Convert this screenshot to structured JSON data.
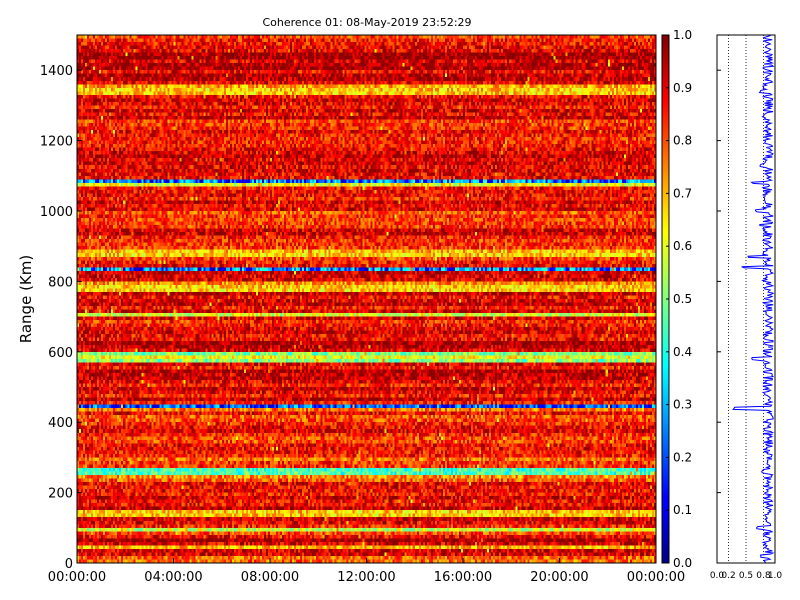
{
  "chart_data": [
    {
      "type": "heatmap",
      "title": "Coherence 01: 08-May-2019 23:52:29",
      "xlabel": "",
      "ylabel": "Range (Km)",
      "x_ticks": [
        "00:00:00",
        "04:00:00",
        "08:00:00",
        "12:00:00",
        "16:00:00",
        "20:00:00",
        "00:00:00"
      ],
      "x_range_hours": [
        0,
        24
      ],
      "y_ticks": [
        0,
        200,
        400,
        600,
        800,
        1000,
        1200,
        1400
      ],
      "y_range": [
        0,
        1500
      ],
      "colormap": "jet",
      "color_range": [
        0,
        1
      ],
      "colorbar_ticks": [
        "0.0",
        "0.1",
        "0.2",
        "0.3",
        "0.4",
        "0.5",
        "0.6",
        "0.7",
        "0.8",
        "0.9",
        "1.0"
      ],
      "n_time_bins": 288,
      "n_range_bins": 150,
      "range_band_mean_coherence": [
        {
          "range": [
            0,
            20
          ],
          "value": 0.75
        },
        {
          "range": [
            20,
            40
          ],
          "value": 0.9
        },
        {
          "range": [
            40,
            55
          ],
          "value": 0.72
        },
        {
          "range": [
            55,
            75
          ],
          "value": 0.92
        },
        {
          "range": [
            75,
            95
          ],
          "value": 0.86
        },
        {
          "range": [
            95,
            105
          ],
          "value": 0.55
        },
        {
          "range": [
            105,
            135
          ],
          "value": 0.88
        },
        {
          "range": [
            135,
            150
          ],
          "value": 0.7
        },
        {
          "range": [
            150,
            230
          ],
          "value": 0.88
        },
        {
          "range": [
            230,
            255
          ],
          "value": 0.76
        },
        {
          "range": [
            255,
            270
          ],
          "value": 0.5
        },
        {
          "range": [
            270,
            300
          ],
          "value": 0.82
        },
        {
          "range": [
            300,
            430
          ],
          "value": 0.85
        },
        {
          "range": [
            430,
            450
          ],
          "value": 0.7
        },
        {
          "range": [
            440,
            450
          ],
          "value": 0.3
        },
        {
          "range": [
            450,
            570
          ],
          "value": 0.9
        },
        {
          "range": [
            570,
            590
          ],
          "value": 0.55
        },
        {
          "range": [
            590,
            600
          ],
          "value": 0.45
        },
        {
          "range": [
            600,
            680
          ],
          "value": 0.92
        },
        {
          "range": [
            680,
            700
          ],
          "value": 0.85
        },
        {
          "range": [
            700,
            710
          ],
          "value": 0.65
        },
        {
          "range": [
            710,
            770
          ],
          "value": 0.9
        },
        {
          "range": [
            770,
            800
          ],
          "value": 0.72
        },
        {
          "range": [
            800,
            830
          ],
          "value": 0.9
        },
        {
          "range": [
            830,
            840
          ],
          "value": 0.35
        },
        {
          "range": [
            840,
            870
          ],
          "value": 0.85
        },
        {
          "range": [
            870,
            890
          ],
          "value": 0.7
        },
        {
          "range": [
            890,
            960
          ],
          "value": 0.88
        },
        {
          "range": [
            960,
            1000
          ],
          "value": 0.82
        },
        {
          "range": [
            1000,
            1070
          ],
          "value": 0.88
        },
        {
          "range": [
            1070,
            1080
          ],
          "value": 0.6
        },
        {
          "range": [
            1080,
            1090
          ],
          "value": 0.35
        },
        {
          "range": [
            1090,
            1230
          ],
          "value": 0.9
        },
        {
          "range": [
            1230,
            1260
          ],
          "value": 0.85
        },
        {
          "range": [
            1260,
            1330
          ],
          "value": 0.9
        },
        {
          "range": [
            1330,
            1360
          ],
          "value": 0.68
        },
        {
          "range": [
            1360,
            1470
          ],
          "value": 0.93
        },
        {
          "range": [
            1470,
            1500
          ],
          "value": 0.85
        }
      ]
    },
    {
      "type": "line",
      "title": "",
      "x_ticks": [
        "0.0",
        "0.2",
        "0.5",
        "0.8",
        "1.0"
      ],
      "x_range": [
        0,
        1
      ],
      "y_range": [
        0,
        1500
      ],
      "grid": "dotted vertical",
      "line_color": "#0000ff",
      "description_of_profile": "mean coherence vs range, mostly 0.85-1.0 with dips",
      "dips": [
        {
          "range": 20,
          "value": 0.75
        },
        {
          "range": 55,
          "value": 0.82
        },
        {
          "range": 100,
          "value": 0.7
        },
        {
          "range": 260,
          "value": 0.78
        },
        {
          "range": 440,
          "value": 0.3
        },
        {
          "range": 580,
          "value": 0.62
        },
        {
          "range": 840,
          "value": 0.45
        },
        {
          "range": 870,
          "value": 0.55
        },
        {
          "range": 960,
          "value": 0.75
        },
        {
          "range": 1000,
          "value": 0.68
        },
        {
          "range": 1080,
          "value": 0.6
        },
        {
          "range": 1130,
          "value": 0.75
        },
        {
          "range": 1270,
          "value": 0.8
        },
        {
          "range": 1340,
          "value": 0.75
        }
      ]
    }
  ]
}
